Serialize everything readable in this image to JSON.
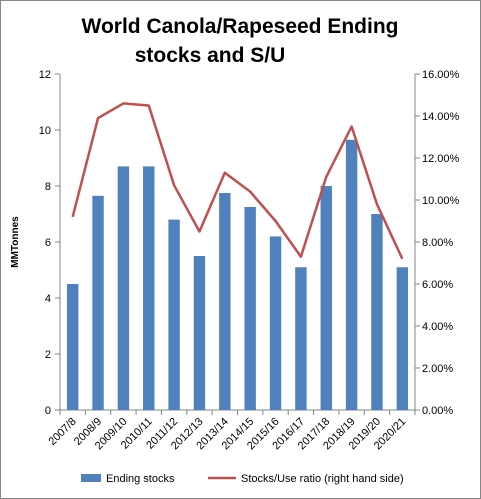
{
  "chart_data": {
    "type": "bar",
    "title_line1": "World Canola/Rapeseed Ending",
    "title_line2": "stocks and S/U",
    "ylabel": "MMTonnes",
    "categories": [
      "2007/8",
      "2008/9",
      "2009/10",
      "2010/11",
      "2011/12",
      "2012/13",
      "2013/14",
      "2014/15",
      "2015/16",
      "2016/17",
      "2017/18",
      "2018/19",
      "2019/20",
      "2020/21"
    ],
    "ylim": [
      0,
      12
    ],
    "y2lim": [
      0,
      0.16
    ],
    "y_ticks": [
      "0",
      "2",
      "4",
      "6",
      "8",
      "10",
      "12"
    ],
    "y2_ticks": [
      "0.00%",
      "2.00%",
      "4.00%",
      "6.00%",
      "8.00%",
      "10.00%",
      "12.00%",
      "14.00%",
      "16.00%"
    ],
    "grid": false,
    "legend_position": "bottom",
    "series": [
      {
        "name": "Ending stocks",
        "type": "bar",
        "axis": "left",
        "color": "#4F81BD",
        "values": [
          4.5,
          7.65,
          8.7,
          8.7,
          6.8,
          5.5,
          7.75,
          7.25,
          6.2,
          5.1,
          8.0,
          9.65,
          7.0,
          5.1
        ]
      },
      {
        "name": "Stocks/Use ratio (right hand side)",
        "type": "line",
        "axis": "right",
        "color": "#C0504D",
        "values": [
          0.092,
          0.139,
          0.146,
          0.145,
          0.107,
          0.085,
          0.113,
          0.104,
          0.09,
          0.073,
          0.111,
          0.135,
          0.098,
          0.072
        ]
      }
    ]
  }
}
